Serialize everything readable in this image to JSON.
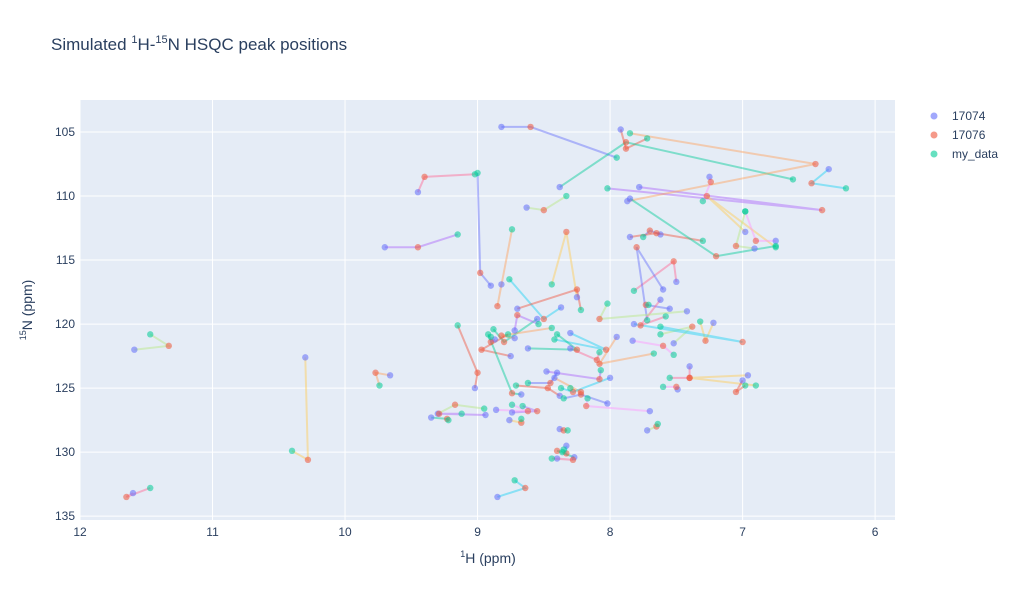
{
  "chart_data": {
    "type": "scatter",
    "title": {
      "main": "Simulated ",
      "sup1": "1",
      "mid": "H-",
      "sup2": "15",
      "tail": "N  HSQC peak positions"
    },
    "xlabel": {
      "sup": "1",
      "text": "H (ppm)"
    },
    "ylabel": {
      "sup": "15",
      "text": "N (ppm)"
    },
    "x_range": [
      12,
      5.85
    ],
    "y_range": [
      102.5,
      135.3
    ],
    "x_reversed": true,
    "y_reversed": true,
    "x_ticks": [
      12,
      11,
      10,
      9,
      8,
      7,
      6
    ],
    "y_ticks": [
      105,
      110,
      115,
      120,
      125,
      130,
      135
    ],
    "grid": true,
    "legend_position": "top-right, outside plot",
    "series": [
      {
        "name": "17074",
        "color": "#636efa",
        "x": [
          8.82,
          7.92,
          8.38,
          7.78,
          7.87,
          6.35,
          9.45,
          8.63,
          7.25,
          6.98,
          7.62,
          7.85,
          7.85,
          9.7,
          8.82,
          8.37,
          7.5,
          6.91,
          6.75,
          8.25,
          7.6,
          8.7,
          8.55,
          8.72,
          8.72,
          8.3,
          8.3,
          7.52,
          7.83,
          7.22,
          7.55,
          8.75,
          8.62,
          8.48,
          8.42,
          8.0,
          7.4,
          9.3,
          7.7,
          10.3,
          8.9,
          9.02,
          8.67,
          8.74,
          8.38,
          8.33,
          8.4,
          7.72,
          7.49,
          6.96,
          8.02,
          7.0,
          9.35,
          8.94,
          9.66,
          8.85,
          11.6,
          11.59,
          8.86,
          8.76,
          8.4,
          8.38,
          8.27,
          8.87,
          7.95,
          7.82,
          7.62,
          7.42
        ],
        "y": [
          104.6,
          104.8,
          109.3,
          109.3,
          110.4,
          107.9,
          109.7,
          110.9,
          108.5,
          112.8,
          113.0,
          113.2,
          110.2,
          114.0,
          116.9,
          118.7,
          116.7,
          114.1,
          113.5,
          117.9,
          117.3,
          118.8,
          119.6,
          120.5,
          121.1,
          120.7,
          121.9,
          121.5,
          121.3,
          119.9,
          118.8,
          122.5,
          121.9,
          123.7,
          124.2,
          124.2,
          123.3,
          127.0,
          126.8,
          122.6,
          117.0,
          125.0,
          125.5,
          126.9,
          128.2,
          129.5,
          130.5,
          128.3,
          125.1,
          124.0,
          126.2,
          124.4,
          127.3,
          127.1,
          124.0,
          133.5,
          133.2,
          122.0,
          126.7,
          127.5,
          123.8,
          125.6,
          130.4,
          121.2,
          121.0,
          120.0,
          118.1,
          119.0
        ]
      },
      {
        "name": "17076",
        "color": "#ef553b",
        "x": [
          8.6,
          7.88,
          7.88,
          6.4,
          6.45,
          6.48,
          9.4,
          8.5,
          7.24,
          7.27,
          7.7,
          7.65,
          7.2,
          9.45,
          8.85,
          8.5,
          7.52,
          7.05,
          6.9,
          8.33,
          7.8,
          8.25,
          8.8,
          8.7,
          8.82,
          8.03,
          8.1,
          7.38,
          7.6,
          7.28,
          7.73,
          8.97,
          8.25,
          8.08,
          8.22,
          8.28,
          7.4,
          9.17,
          8.18,
          10.28,
          8.98,
          9.0,
          8.74,
          8.55,
          8.35,
          8.33,
          8.28,
          7.65,
          7.5,
          7.4,
          8.22,
          7.05,
          9.23,
          9.29,
          9.77,
          8.64,
          11.65,
          11.33,
          8.62,
          8.67,
          8.45,
          8.47,
          8.4,
          8.9,
          8.08,
          7.0,
          7.77,
          8.08
        ],
        "y": [
          104.6,
          106.3,
          105.8,
          111.1,
          107.5,
          109.0,
          108.5,
          111.1,
          108.9,
          110.0,
          112.7,
          112.9,
          114.7,
          114.0,
          118.6,
          119.6,
          115.1,
          113.9,
          113.5,
          112.8,
          114.0,
          117.3,
          121.4,
          119.3,
          120.9,
          122.0,
          122.8,
          120.2,
          121.7,
          121.3,
          118.5,
          122.0,
          122.0,
          124.3,
          125.3,
          125.3,
          124.2,
          126.3,
          126.4,
          130.6,
          116.0,
          123.8,
          125.4,
          126.8,
          128.3,
          130.1,
          130.6,
          128.0,
          124.9,
          124.2,
          125.5,
          125.3,
          127.4,
          127.0,
          123.8,
          132.8,
          133.5,
          121.7,
          126.8,
          127.7,
          124.6,
          125.0,
          129.9,
          121.4,
          123.1,
          121.4,
          120.1,
          119.6
        ]
      },
      {
        "name": "my_data",
        "color": "#00cc96",
        "x": [
          7.95,
          7.72,
          6.62,
          8.02,
          7.85,
          6.22,
          9.02,
          8.33,
          7.3,
          6.75,
          7.75,
          7.3,
          6.75,
          9.15,
          8.74,
          8.76,
          7.82,
          6.98,
          6.98,
          8.44,
          7.72,
          8.22,
          8.88,
          8.54,
          8.44,
          8.42,
          8.08,
          7.62,
          7.52,
          7.32,
          7.71,
          8.77,
          8.4,
          8.07,
          8.3,
          8.37,
          7.55,
          8.95,
          8.17,
          10.4,
          9.0,
          9.15,
          8.92,
          8.66,
          8.32,
          8.35,
          8.44,
          7.64,
          7.6,
          6.9,
          8.35,
          6.98,
          9.22,
          9.12,
          9.74,
          8.72,
          11.47,
          11.47,
          8.74,
          8.67,
          8.62,
          8.71,
          8.36,
          8.9,
          7.67,
          7.62,
          7.58,
          8.02
        ],
        "y": [
          107.0,
          105.5,
          108.7,
          109.4,
          105.1,
          109.4,
          108.3,
          110.0,
          110.4,
          114.0,
          113.2,
          113.5,
          113.9,
          113.0,
          112.6,
          116.5,
          117.4,
          111.2,
          111.2,
          116.9,
          119.7,
          118.9,
          120.4,
          120.0,
          120.3,
          121.2,
          122.2,
          120.8,
          122.4,
          119.8,
          118.5,
          120.8,
          120.8,
          123.6,
          125.0,
          125.0,
          124.2,
          126.6,
          125.8,
          129.9,
          108.2,
          120.1,
          120.8,
          126.4,
          128.3,
          129.8,
          130.5,
          127.8,
          124.9,
          124.8,
          125.8,
          124.8,
          127.5,
          127.0,
          124.8,
          132.2,
          132.8,
          120.8,
          126.3,
          127.4,
          124.6,
          124.8,
          130.0,
          121.0,
          122.3,
          120.2,
          119.4,
          118.4
        ]
      }
    ]
  }
}
